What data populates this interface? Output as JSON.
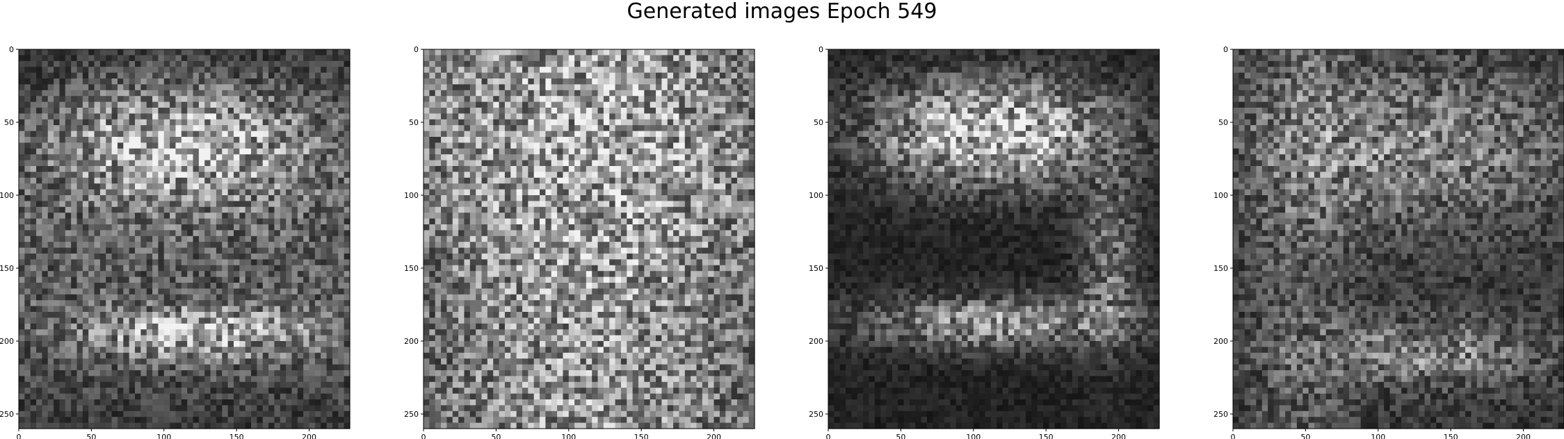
{
  "figure": {
    "title": "Generated images Epoch 549"
  },
  "chart_data": [
    {
      "type": "heatmap",
      "xlim": [
        0,
        228
      ],
      "ylim": [
        260,
        0
      ],
      "colormap": "gray",
      "xticks": [
        "0",
        "50",
        "100",
        "150",
        "200"
      ],
      "yticks": [
        "0",
        "50",
        "100",
        "150",
        "200",
        "250"
      ],
      "pattern": "generated-noise-1"
    },
    {
      "type": "heatmap",
      "xlim": [
        0,
        228
      ],
      "ylim": [
        260,
        0
      ],
      "colormap": "gray",
      "xticks": [
        "0",
        "50",
        "100",
        "150",
        "200"
      ],
      "yticks": [
        "0",
        "50",
        "100",
        "150",
        "200",
        "250"
      ],
      "pattern": "generated-noise-2"
    },
    {
      "type": "heatmap",
      "xlim": [
        0,
        228
      ],
      "ylim": [
        260,
        0
      ],
      "colormap": "gray",
      "xticks": [
        "0",
        "50",
        "100",
        "150",
        "200"
      ],
      "yticks": [
        "0",
        "50",
        "100",
        "150",
        "200",
        "250"
      ],
      "pattern": "generated-noise-3"
    },
    {
      "type": "heatmap",
      "xlim": [
        0,
        228
      ],
      "ylim": [
        260,
        0
      ],
      "colormap": "gray",
      "xticks": [
        "0",
        "50",
        "100",
        "150",
        "200"
      ],
      "yticks": [
        "0",
        "50",
        "100",
        "150",
        "200",
        "250"
      ],
      "pattern": "generated-noise-4"
    }
  ]
}
